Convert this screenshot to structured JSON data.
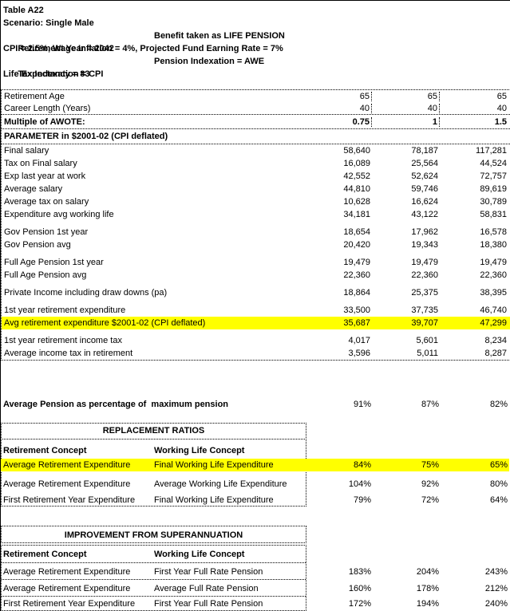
{
  "header": {
    "title": "Table A22",
    "scenario": "Scenario: Single Male",
    "retirement_year": "Retirement Year = 2042",
    "benefit": "Benefit taken as LIFE PENSION",
    "assumptions": "CPI = 2.5%, Wage Inflation = 4%, Projected Fund Earning Rate = 7%",
    "tax_indexation": "Tax Indexation = CPI",
    "pension_indexation": "Pension Indexation = AWE",
    "life_expectancy": "Life Expectancy = 83"
  },
  "highlight_color": "#ffff00",
  "main_table": {
    "rows": [
      {
        "label": "Retirement Age",
        "values": [
          "65",
          "65",
          "65"
        ]
      },
      {
        "label": "Career Length (Years)",
        "values": [
          "40",
          "40",
          "40"
        ],
        "sep_after": true
      },
      {
        "label": "Multiple of AWOTE:",
        "values": [
          "0.75",
          "1",
          "1.5"
        ],
        "bold": true,
        "sep_after": true
      },
      {
        "label": "PARAMETER in $2001-02 (CPI deflated)",
        "bold": true,
        "sep_after": true
      },
      {
        "label": "Final salary",
        "values": [
          "58,640",
          "78,187",
          "117,281"
        ]
      },
      {
        "label": "Tax on Final salary",
        "values": [
          "16,089",
          "25,564",
          "44,524"
        ]
      },
      {
        "label": "Exp last year at work",
        "values": [
          "42,552",
          "52,624",
          "72,757"
        ]
      },
      {
        "label": "Average salary",
        "values": [
          "44,810",
          "59,746",
          "89,619"
        ]
      },
      {
        "label": "Average tax on salary",
        "values": [
          "10,628",
          "16,624",
          "30,789"
        ]
      },
      {
        "label": "Expenditure avg working life",
        "values": [
          "34,181",
          "43,122",
          "58,831"
        ]
      },
      {
        "label": "Gov Pension 1st year",
        "values": [
          "18,654",
          "17,962",
          "16,578"
        ],
        "gap_before": true
      },
      {
        "label": "Gov Pension avg",
        "values": [
          "20,420",
          "19,343",
          "18,380"
        ]
      },
      {
        "label": "Full Age Pension 1st year",
        "values": [
          "19,479",
          "19,479",
          "19,479"
        ],
        "gap_before": true
      },
      {
        "label": "Full Age Pension avg",
        "values": [
          "22,360",
          "22,360",
          "22,360"
        ]
      },
      {
        "label": "Private Income including draw downs (pa)",
        "values": [
          "18,864",
          "25,375",
          "38,395"
        ],
        "gap_before": true
      },
      {
        "label": "1st year retirement expenditure",
        "values": [
          "33,500",
          "37,735",
          "46,740"
        ],
        "gap_before": true
      },
      {
        "label": "Avg retirement expenditure $2001-02 (CPI deflated)",
        "values": [
          "35,687",
          "39,707",
          "47,299"
        ],
        "highlight": true
      },
      {
        "label": "1st year retirement income tax",
        "values": [
          "4,017",
          "5,601",
          "8,234"
        ],
        "gap_before": true
      },
      {
        "label": "Average income tax in retirement",
        "values": [
          "3,596",
          "5,011",
          "8,287"
        ]
      }
    ]
  },
  "summary": {
    "label": "Average Pension as percentage of  maximum pension",
    "values": [
      "91%",
      "87%",
      "82%"
    ]
  },
  "replacement": {
    "title": "REPLACEMENT RATIOS",
    "col1_header": "Retirement Concept",
    "col2_header": "Working Life Concept",
    "rows": [
      {
        "c1": "Average Retirement Expenditure",
        "c2": "Final Working Life Expenditure",
        "values": [
          "84%",
          "75%",
          "65%"
        ],
        "highlight": true
      },
      {
        "c1": "Average Retirement Expenditure",
        "c2": "Average Working Life Expenditure",
        "values": [
          "104%",
          "92%",
          "80%"
        ]
      },
      {
        "c1": "First Retirement Year Expenditure",
        "c2": "Final Working Life Expenditure",
        "values": [
          "79%",
          "72%",
          "64%"
        ]
      }
    ]
  },
  "improvement": {
    "title": "IMPROVEMENT FROM SUPERANNUATION",
    "col1_header": "Retirement Concept",
    "col2_header": "Working Life Concept",
    "rows": [
      {
        "c1": "Average Retirement Expenditure",
        "c2": "First Year Full Rate Pension",
        "values": [
          "183%",
          "204%",
          "243%"
        ]
      },
      {
        "c1": "Average Retirement Expenditure",
        "c2": "Average Full Rate Pension",
        "values": [
          "160%",
          "178%",
          "212%"
        ]
      },
      {
        "c1": "First Retirement Year Expenditure",
        "c2": "First Year Full Rate Pension",
        "values": [
          "172%",
          "194%",
          "240%"
        ]
      }
    ]
  }
}
